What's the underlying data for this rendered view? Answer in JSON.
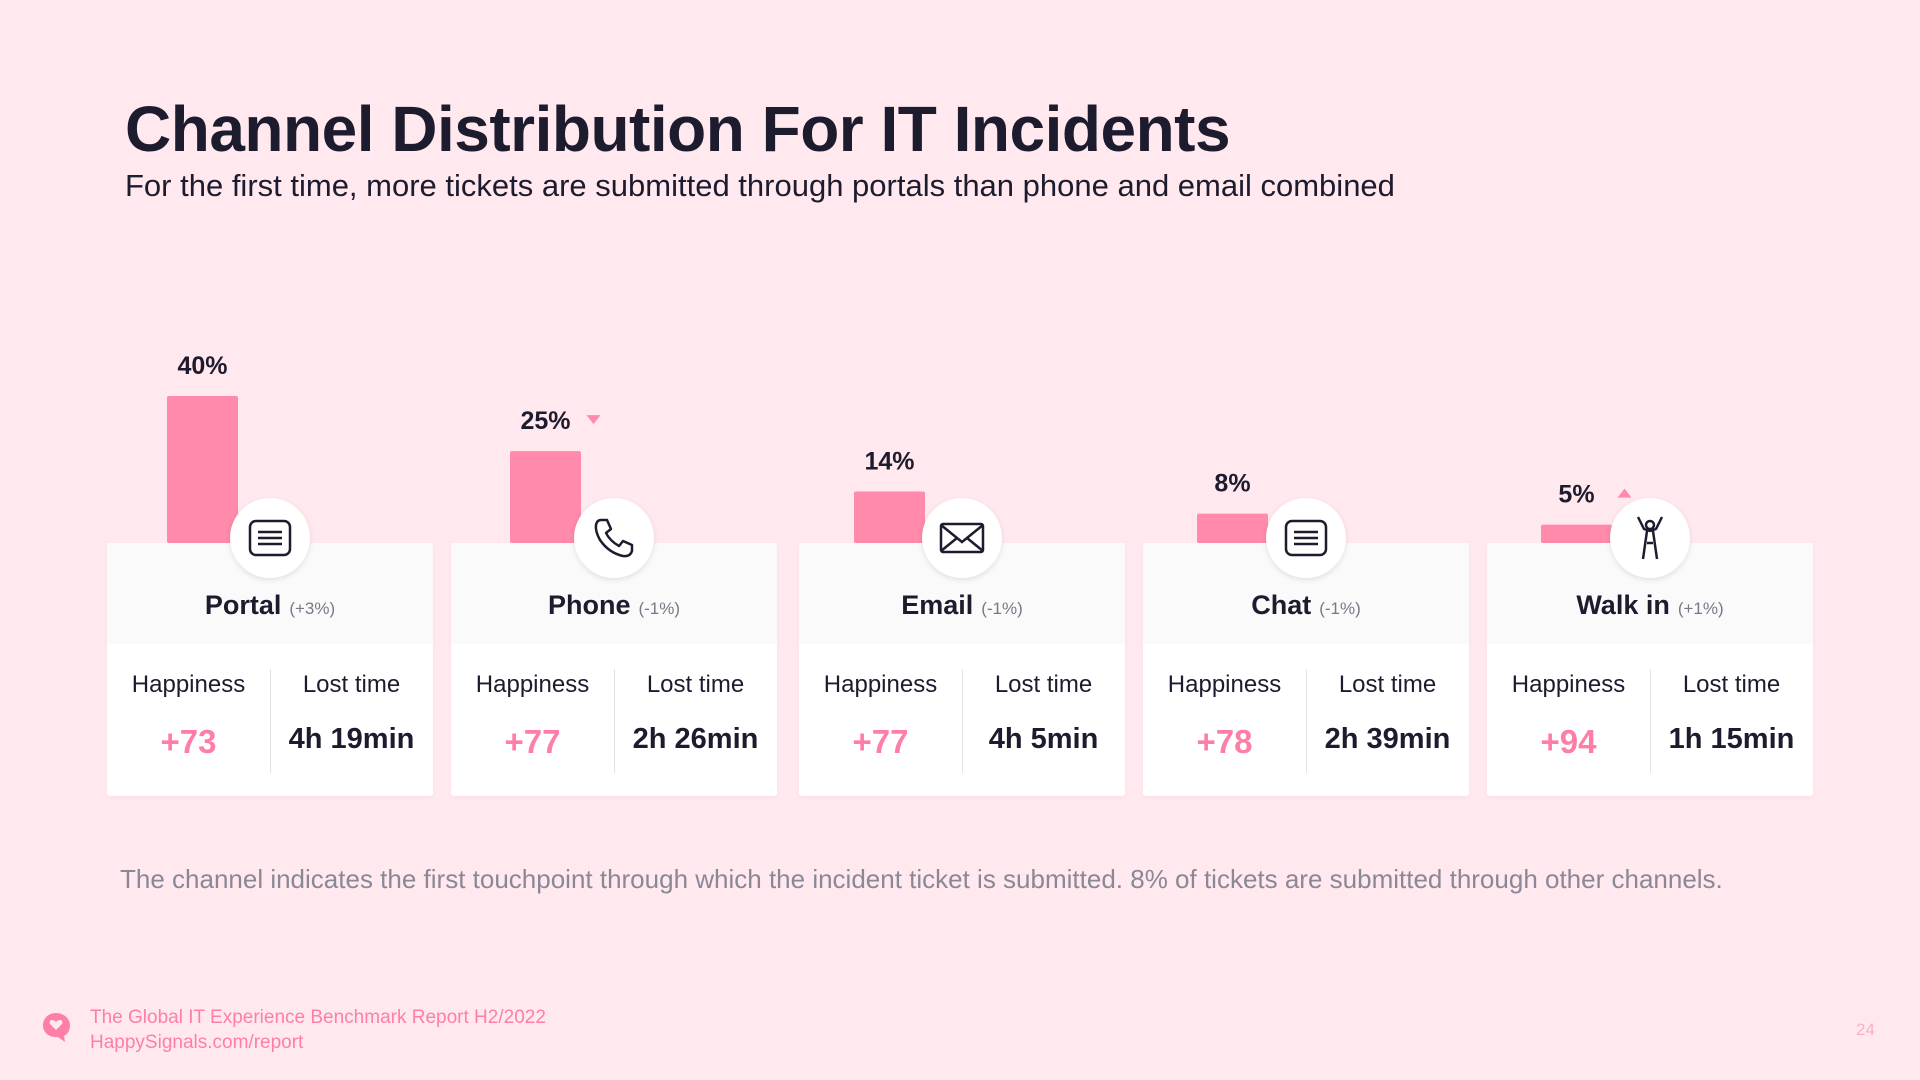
{
  "title": "Channel Distribution For IT Incidents",
  "subtitle": "For the first time, more tickets are submitted through portals than phone and email combined",
  "chart_data": {
    "type": "bar",
    "categories": [
      "Portal",
      "Phone",
      "Email",
      "Chat",
      "Walk in"
    ],
    "values": [
      40,
      25,
      14,
      8,
      5
    ],
    "value_labels": [
      "40%",
      "25%",
      "14%",
      "8%",
      "5%"
    ],
    "trend": [
      "none",
      "down",
      "none",
      "none",
      "up"
    ],
    "ylim": [
      0,
      40
    ]
  },
  "cards": [
    {
      "name": "Portal",
      "change": "(+3%)",
      "icon": "portal-document-icon",
      "happiness_label": "Happiness",
      "happiness": "+73",
      "lost_label": "Lost time",
      "lost": "4h 19min"
    },
    {
      "name": "Phone",
      "change": "(-1%)",
      "icon": "phone-icon",
      "happiness_label": "Happiness",
      "happiness": "+77",
      "lost_label": "Lost time",
      "lost": "2h 26min"
    },
    {
      "name": "Email",
      "change": "(-1%)",
      "icon": "envelope-icon",
      "happiness_label": "Happiness",
      "happiness": "+77",
      "lost_label": "Lost time",
      "lost": "4h 5min"
    },
    {
      "name": "Chat",
      "change": "(-1%)",
      "icon": "chat-icon",
      "happiness_label": "Happiness",
      "happiness": "+78",
      "lost_label": "Lost time",
      "lost": "2h 39min"
    },
    {
      "name": "Walk in",
      "change": "(+1%)",
      "icon": "walk-in-person-icon",
      "happiness_label": "Happiness",
      "happiness": "+94",
      "lost_label": "Lost time",
      "lost": "1h 15min"
    }
  ],
  "footnote": "The channel indicates the first touchpoint through which the incident ticket is submitted. 8% of tickets are submitted through other channels.",
  "footer": {
    "report_name": "The Global IT Experience Benchmark Report H2/2022",
    "url": "HappySignals.com/report",
    "page_number": "24",
    "logo_icon": "heart-chat-logo-icon"
  },
  "colors": {
    "background": "#ffe9ee",
    "bar": "#ff8aab",
    "accent": "#ff7ea6",
    "text": "#1d1b2e",
    "muted": "#8a8896"
  }
}
